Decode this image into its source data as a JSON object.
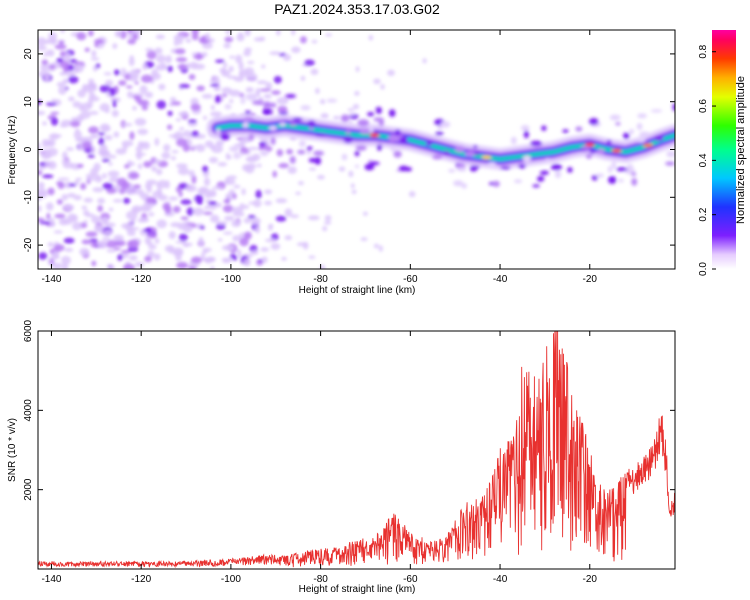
{
  "figure_title": "PAZ1.2024.353.17.03.G02",
  "chart_data": [
    {
      "type": "heatmap",
      "title": "PAZ1.2024.353.17.03.G02",
      "xlabel": "Height of straight line (km)",
      "ylabel": "Frequency (Hz)",
      "xlim": [
        -143,
        -1
      ],
      "ylim": [
        -25,
        25
      ],
      "x_ticks": [
        -140,
        -120,
        -100,
        -80,
        -60,
        -40,
        -20
      ],
      "y_ticks": [
        -20,
        -10,
        0,
        10,
        20
      ],
      "ridge": {
        "x": [
          -103,
          -100,
          -96,
          -92,
          -88,
          -84,
          -80,
          -76,
          -72,
          -68,
          -64,
          -60,
          -56,
          -52,
          -48,
          -44,
          -40,
          -36,
          -32,
          -28,
          -24,
          -20,
          -16,
          -12,
          -8,
          -4,
          -1
        ],
        "y": [
          4.5,
          5,
          5,
          4.5,
          5,
          4.5,
          4,
          3.5,
          3,
          3,
          2.5,
          2,
          1,
          0,
          -1,
          -1.5,
          -2,
          -1.5,
          -1,
          -0.5,
          0.5,
          1,
          0,
          -0.5,
          0.5,
          2,
          3
        ]
      },
      "noise_region_x": [
        -143,
        -86
      ],
      "colorbar": {
        "label": "Normalized spectral amplitude",
        "ticks": [
          0.0,
          0.2,
          0.4,
          0.6,
          0.8
        ],
        "range": [
          0,
          0.88
        ]
      },
      "grid": false
    },
    {
      "type": "line",
      "xlabel": "Height of straight line (km)",
      "ylabel": "SNR (10 * v/v)",
      "xlim": [
        -143,
        -1
      ],
      "ylim": [
        0,
        6000
      ],
      "x_ticks": [
        -140,
        -120,
        -100,
        -80,
        -60,
        -40,
        -20
      ],
      "y_ticks": [
        2000,
        4000,
        6000
      ],
      "color": "#e8312f",
      "envelope": {
        "x": [
          -143,
          -130,
          -120,
          -110,
          -100,
          -95,
          -90,
          -85,
          -80,
          -75,
          -70,
          -66,
          -64,
          -62,
          -60,
          -58,
          -55,
          -52,
          -50,
          -48,
          -45,
          -42,
          -40,
          -38,
          -36,
          -35,
          -34,
          -32,
          -30,
          -28,
          -27,
          -26,
          -24,
          -22,
          -20,
          -18,
          -16,
          -14,
          -12,
          -10,
          -8,
          -6,
          -4,
          -3,
          -2,
          -1
        ],
        "y": [
          150,
          150,
          150,
          150,
          200,
          250,
          300,
          400,
          500,
          600,
          800,
          1000,
          1400,
          1200,
          900,
          800,
          700,
          800,
          1200,
          1600,
          1800,
          2200,
          3000,
          3500,
          4000,
          5500,
          4800,
          5000,
          5600,
          6200,
          6000,
          5500,
          4500,
          4000,
          3000,
          2200,
          2000,
          2200,
          2400,
          2500,
          2800,
          3000,
          4000,
          3000,
          1500,
          2000
        ]
      },
      "grid": false
    }
  ]
}
